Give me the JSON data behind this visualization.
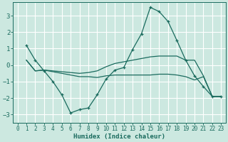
{
  "background_color": "#cce8e0",
  "grid_color": "#ffffff",
  "line_color": "#1a6b5e",
  "x_label": "Humidex (Indice chaleur)",
  "xlim": [
    -0.5,
    23.5
  ],
  "ylim": [
    -3.5,
    3.8
  ],
  "yticks": [
    -3,
    -2,
    -1,
    0,
    1,
    2,
    3
  ],
  "xticks": [
    0,
    1,
    2,
    3,
    4,
    5,
    6,
    7,
    8,
    9,
    10,
    11,
    12,
    13,
    14,
    15,
    16,
    17,
    18,
    19,
    20,
    21,
    22,
    23
  ],
  "series": [
    {
      "x": [
        1,
        2,
        3,
        4,
        5,
        6,
        7,
        8,
        9,
        10,
        11,
        12,
        13,
        14,
        15,
        16,
        17,
        18,
        19,
        20,
        21,
        22,
        23
      ],
      "y": [
        1.2,
        0.3,
        -0.35,
        -1.0,
        -1.8,
        -2.9,
        -2.7,
        -2.6,
        -1.8,
        -0.85,
        -0.3,
        -0.15,
        0.95,
        1.9,
        3.5,
        3.25,
        2.65,
        1.5,
        0.3,
        -0.65,
        -1.3,
        -1.9,
        -1.9
      ],
      "marker": true
    },
    {
      "x": [
        1,
        2,
        3,
        4,
        5,
        6,
        7,
        8,
        9,
        10,
        11,
        12,
        13,
        14,
        15,
        16,
        17,
        18,
        19,
        20,
        21,
        22,
        23
      ],
      "y": [
        0.3,
        -0.35,
        -0.3,
        -0.35,
        -0.4,
        -0.45,
        -0.5,
        -0.45,
        -0.35,
        -0.1,
        0.1,
        0.2,
        0.3,
        0.4,
        0.5,
        0.55,
        0.55,
        0.55,
        0.3,
        0.3,
        -0.65,
        -1.9,
        -1.9
      ],
      "marker": false
    },
    {
      "x": [
        1,
        2,
        3,
        4,
        5,
        6,
        7,
        8,
        9,
        10,
        11,
        12,
        13,
        14,
        15,
        16,
        17,
        18,
        19,
        20,
        21,
        22,
        23
      ],
      "y": [
        0.3,
        -0.35,
        -0.3,
        -0.4,
        -0.5,
        -0.6,
        -0.7,
        -0.7,
        -0.75,
        -0.65,
        -0.6,
        -0.6,
        -0.6,
        -0.6,
        -0.6,
        -0.55,
        -0.55,
        -0.6,
        -0.7,
        -0.9,
        -0.7,
        -1.9,
        -1.9
      ],
      "marker": false
    }
  ]
}
